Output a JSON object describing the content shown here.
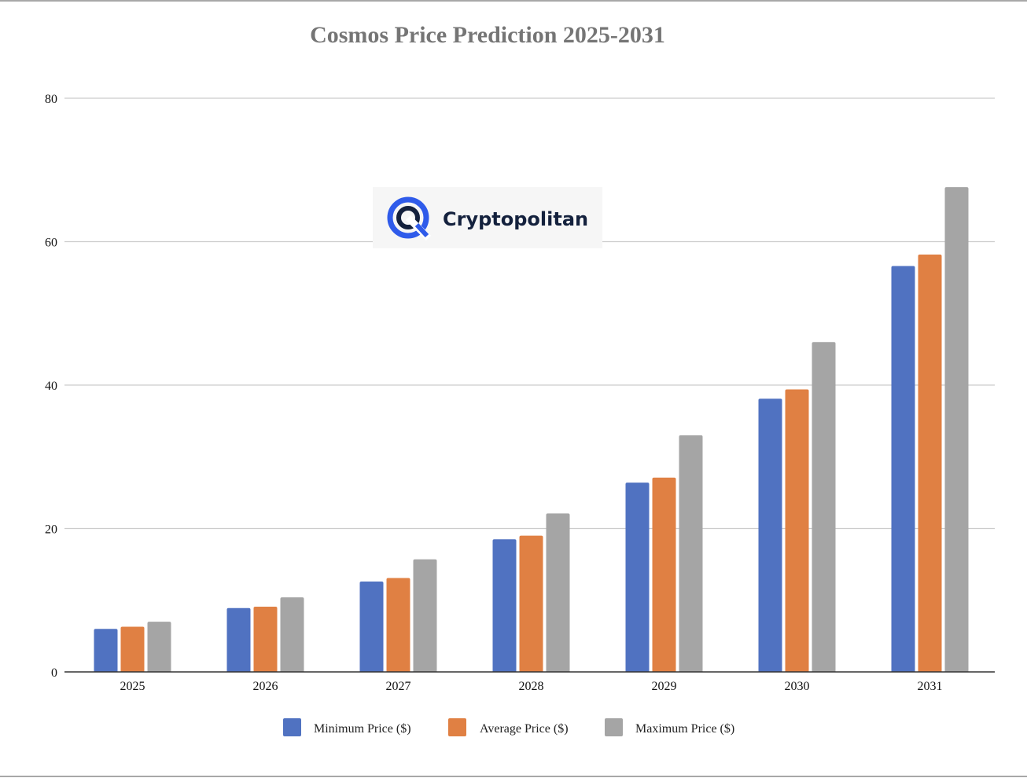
{
  "colors": {
    "minimum": "#5072c1",
    "average": "#e08043",
    "maximum": "#a5a5a5",
    "grid": "#cccccc",
    "axis": "#333333",
    "title": "#757575",
    "logo_blue": "#2f5bea",
    "logo_dark": "#14213d"
  },
  "watermark": {
    "brand": "Cryptopolitan",
    "icon": "cryptopolitan-logo-icon"
  },
  "chart_data": {
    "type": "bar",
    "title": "Cosmos Price Prediction 2025-2031",
    "xlabel": "",
    "ylabel": "",
    "categories": [
      "2025",
      "2026",
      "2027",
      "2028",
      "2029",
      "2030",
      "2031"
    ],
    "series": [
      {
        "name": "Minimum Price ($)",
        "color_key": "minimum",
        "values": [
          6.0,
          8.9,
          12.6,
          18.5,
          26.4,
          38.1,
          56.6
        ]
      },
      {
        "name": "Average Price ($)",
        "color_key": "average",
        "values": [
          6.3,
          9.1,
          13.1,
          19.0,
          27.1,
          39.4,
          58.2
        ]
      },
      {
        "name": "Maximum Price ($)",
        "color_key": "maximum",
        "values": [
          7.0,
          10.4,
          15.7,
          22.1,
          33.0,
          46.0,
          67.6
        ]
      }
    ],
    "yticks": [
      0,
      20,
      40,
      60,
      80
    ],
    "ylim": [
      0,
      80
    ],
    "grid": true,
    "legend_position": "bottom"
  }
}
